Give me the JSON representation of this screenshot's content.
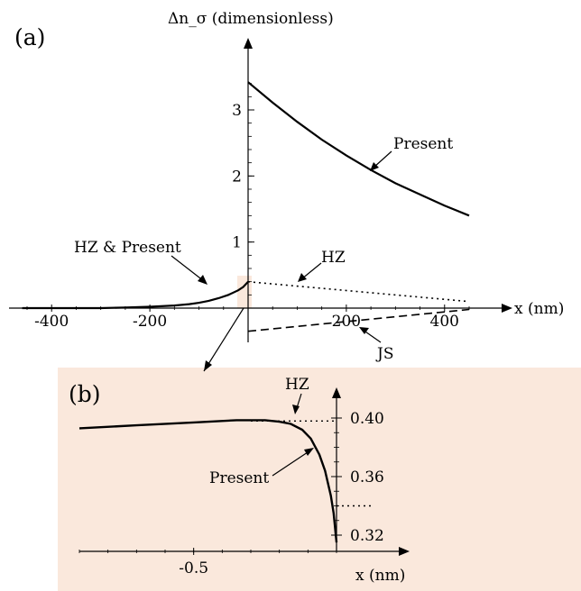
{
  "chart_data": [
    {
      "panel": "(a)",
      "type": "line",
      "ylabel": "Δn_σ (dimensionless)",
      "xlabel": "x (nm)",
      "xlim": [
        -460,
        460
      ],
      "ylim": [
        -0.6,
        3.7
      ],
      "x_ticks": [
        -400,
        -200,
        200,
        400
      ],
      "x_tick_labels": [
        "-400",
        "-200",
        "200",
        "400"
      ],
      "y_ticks": [
        1,
        2,
        3
      ],
      "y_tick_labels": [
        "1",
        "2",
        "3"
      ],
      "series": [
        {
          "label": "Present",
          "style": "solid",
          "x": [
            0,
            50,
            100,
            150,
            200,
            250,
            300,
            350,
            400,
            450
          ],
          "y": [
            3.42,
            3.11,
            2.82,
            2.55,
            2.31,
            2.09,
            1.89,
            1.72,
            1.55,
            1.4
          ]
        },
        {
          "label": "HZ & Present",
          "style": "solid",
          "x": [
            -460,
            -400,
            -350,
            -300,
            -250,
            -200,
            -150,
            -120,
            -100,
            -80,
            -60,
            -40,
            -20,
            -10,
            0
          ],
          "y": [
            0.0,
            0.0,
            0.0,
            0.0,
            0.01,
            0.02,
            0.04,
            0.06,
            0.08,
            0.11,
            0.15,
            0.2,
            0.27,
            0.32,
            0.4
          ]
        },
        {
          "label": "HZ",
          "style": "dotted",
          "x": [
            0,
            450
          ],
          "y": [
            0.4,
            0.1
          ]
        },
        {
          "label": "JS",
          "style": "dashed",
          "x": [
            0,
            450
          ],
          "y": [
            -0.35,
            -0.02
          ]
        }
      ],
      "annotations": [
        "Present",
        "HZ & Present",
        "HZ",
        "JS"
      ]
    },
    {
      "panel": "(b)",
      "type": "line",
      "xlabel": "x (nm)",
      "xlim": [
        -0.9,
        0.0
      ],
      "ylim": [
        0.31,
        0.415
      ],
      "x_ticks": [
        -0.5
      ],
      "x_tick_labels": [
        "-0.5"
      ],
      "y_ticks": [
        0.32,
        0.36,
        0.4
      ],
      "y_tick_labels": [
        "0.32",
        "0.36",
        "0.40"
      ],
      "series": [
        {
          "label": "Present",
          "style": "solid",
          "x": [
            -0.9,
            -0.7,
            -0.5,
            -0.35,
            -0.25,
            -0.2,
            -0.16,
            -0.12,
            -0.09,
            -0.06,
            -0.04,
            -0.02,
            -0.01,
            0.0
          ],
          "y": [
            0.393,
            0.395,
            0.397,
            0.3985,
            0.3985,
            0.3975,
            0.396,
            0.392,
            0.386,
            0.375,
            0.364,
            0.347,
            0.335,
            0.315
          ]
        },
        {
          "label": "HZ",
          "style": "dotted",
          "x": [
            -0.3,
            0.0
          ],
          "y": [
            0.398,
            0.398
          ]
        },
        {
          "label": "",
          "style": "dotted",
          "x": [
            0.0,
            0.12
          ],
          "y": [
            0.34,
            0.34
          ]
        }
      ],
      "annotations": [
        "HZ",
        "Present"
      ]
    }
  ]
}
